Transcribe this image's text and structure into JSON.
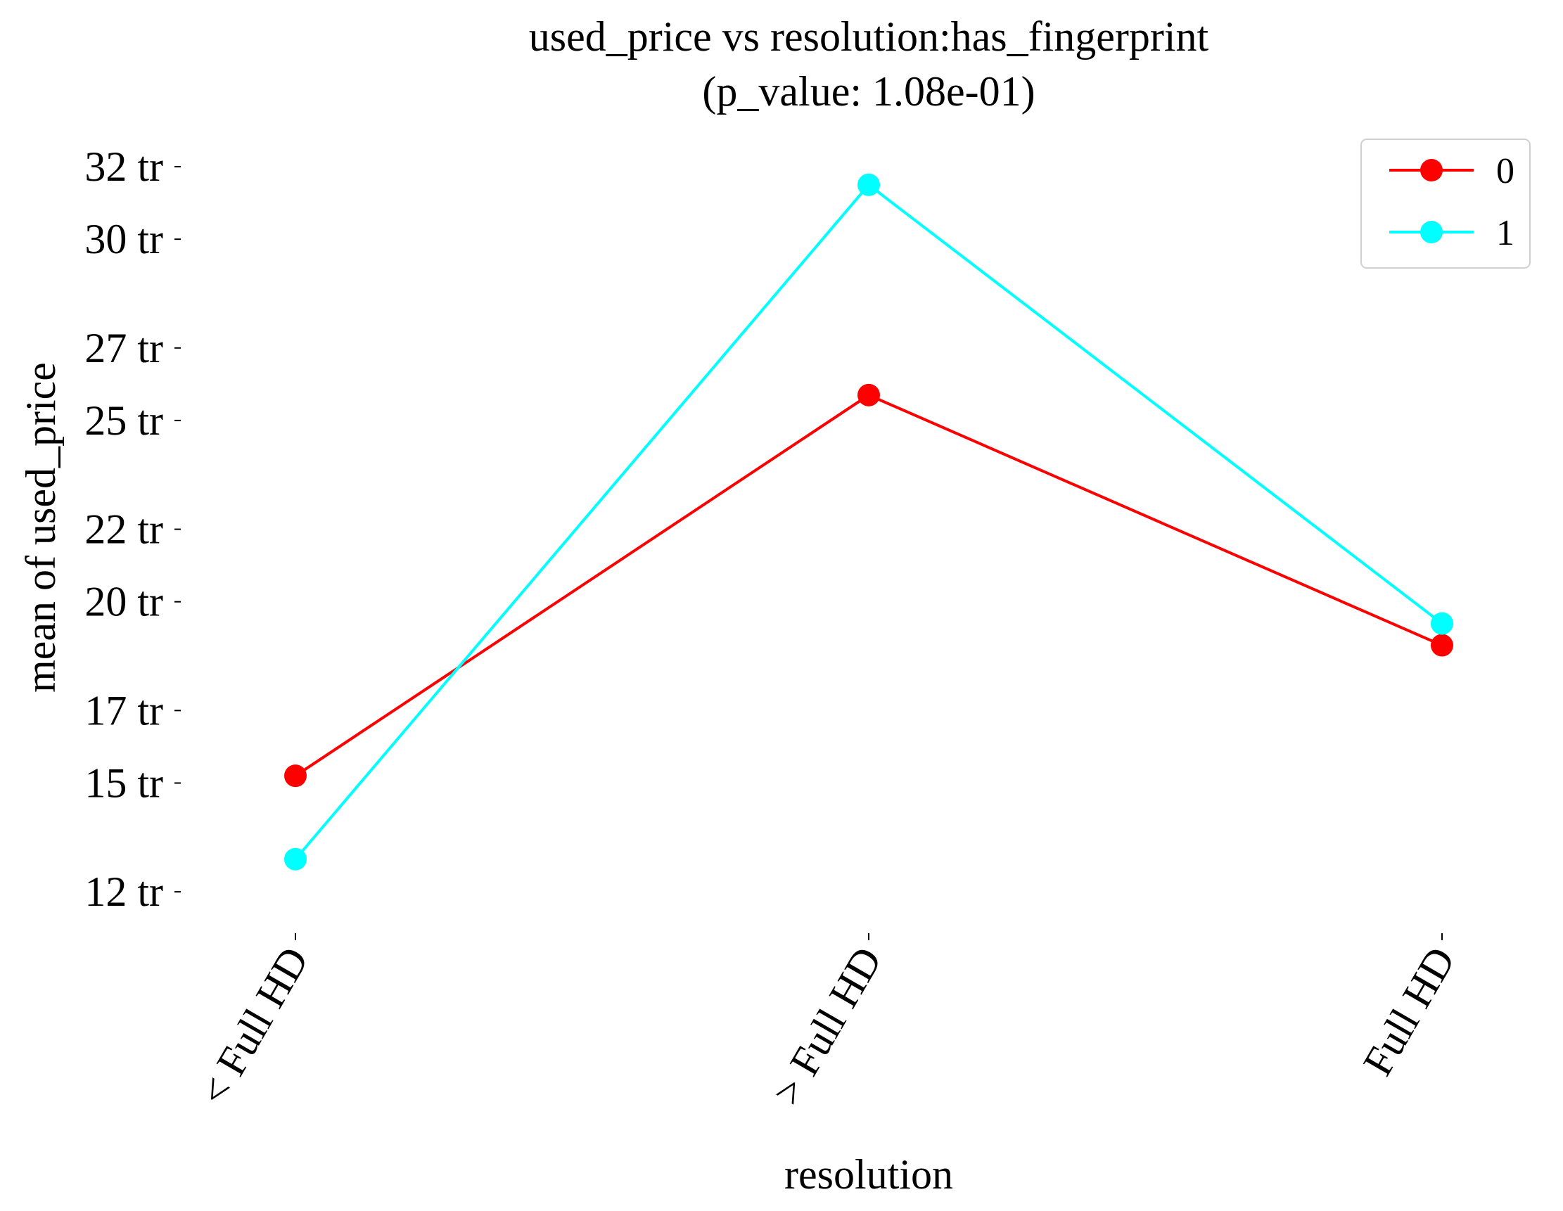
{
  "chart_data": {
    "type": "line",
    "title": "used_price vs resolution:has_fingerprint",
    "subtitle": "(p_value: 1.08e-01)",
    "xlabel": "resolution",
    "ylabel": "mean of used_price",
    "categories": [
      "< Full HD",
      "> Full HD",
      "Full HD"
    ],
    "y_ticks": [
      12000000,
      15000000,
      17000000,
      20000000,
      22000000,
      25000000,
      27000000,
      30000000,
      32000000
    ],
    "y_tick_labels": [
      "12 tr",
      "15 tr",
      "17 tr",
      "20 tr",
      "22 tr",
      "25 tr",
      "27 tr",
      "30 tr",
      "32 tr"
    ],
    "ylim": [
      10800000,
      33300000
    ],
    "grid": false,
    "legend_position": "top-right",
    "series": [
      {
        "name": "0",
        "color": "#ff0000",
        "values": [
          15200000,
          25700000,
          18800000
        ]
      },
      {
        "name": "1",
        "color": "#00ffff",
        "values": [
          12900000,
          31500000,
          19400000
        ]
      }
    ]
  }
}
